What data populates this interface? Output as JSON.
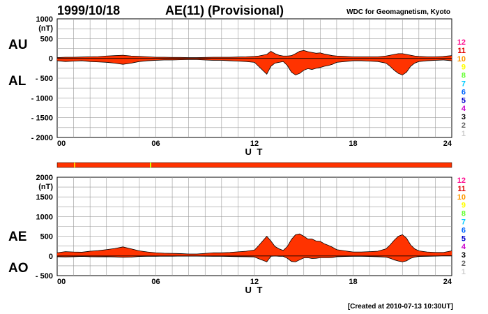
{
  "header": {
    "date": "1999/10/18",
    "title": "AE(11) (Provisional)",
    "source": "WDC for Geomagnetism, Kyoto"
  },
  "footer": {
    "created": "[Created at 2010-07-13 10:30UT]"
  },
  "legend": {
    "labels": [
      "12",
      "11",
      "10",
      "9",
      "8",
      "7",
      "6",
      "5",
      "4",
      "3",
      "2",
      "1"
    ],
    "colors": [
      "#ff1493",
      "#e00000",
      "#ff9900",
      "#ffff00",
      "#66ff33",
      "#00ccff",
      "#0066ff",
      "#0000cc",
      "#cc00cc",
      "#000000",
      "#666666",
      "#cccccc"
    ]
  },
  "colors": {
    "fill": "#ff3300",
    "outline": "#000000",
    "grid": "#999999"
  },
  "chart_data": [
    {
      "type": "area",
      "panel_labels": [
        "AU",
        "AL"
      ],
      "unit": "(nT)",
      "xlabel": "U T",
      "xlim": [
        0,
        24
      ],
      "ylim": [
        -2000,
        1000
      ],
      "xticks": [
        0,
        6,
        12,
        18,
        24
      ],
      "xtick_labels": [
        "00",
        "06",
        "12",
        "18",
        "24"
      ],
      "yticks": [
        1000,
        500,
        0,
        -500,
        -1000,
        -1500,
        -2000
      ],
      "ytick_labels": [
        "1000",
        "500",
        "0",
        "- 500",
        "- 1000",
        "- 1500",
        "- 2000"
      ],
      "x": [
        0,
        0.5,
        1,
        1.5,
        2,
        2.5,
        3,
        3.5,
        4,
        4.5,
        5,
        5.5,
        6,
        6.5,
        7,
        7.5,
        8,
        8.5,
        9,
        9.5,
        10,
        10.5,
        11,
        11.5,
        12,
        12.25,
        12.5,
        12.75,
        13,
        13.25,
        13.5,
        13.75,
        14,
        14.25,
        14.5,
        14.75,
        15,
        15.25,
        15.5,
        15.75,
        16,
        16.25,
        16.5,
        16.75,
        17,
        17.5,
        18,
        18.5,
        19,
        19.5,
        20,
        20.25,
        20.5,
        20.75,
        21,
        21.25,
        21.5,
        21.75,
        22,
        22.5,
        23,
        23.5,
        24
      ],
      "series": [
        {
          "name": "AU",
          "values": [
            20,
            30,
            30,
            35,
            40,
            45,
            60,
            70,
            80,
            60,
            50,
            40,
            30,
            30,
            25,
            25,
            20,
            20,
            25,
            30,
            30,
            30,
            35,
            40,
            50,
            60,
            80,
            100,
            180,
            120,
            80,
            60,
            60,
            70,
            120,
            180,
            200,
            170,
            150,
            130,
            140,
            110,
            90,
            70,
            60,
            50,
            40,
            40,
            40,
            40,
            60,
            80,
            100,
            120,
            120,
            100,
            80,
            60,
            50,
            40,
            40,
            50,
            70
          ]
        },
        {
          "name": "AL",
          "values": [
            -60,
            -80,
            -70,
            -60,
            -80,
            -90,
            -100,
            -120,
            -150,
            -120,
            -80,
            -60,
            -50,
            -40,
            -40,
            -35,
            -30,
            -30,
            -40,
            -50,
            -50,
            -60,
            -70,
            -80,
            -100,
            -200,
            -300,
            -400,
            -200,
            -120,
            -100,
            -80,
            -180,
            -350,
            -420,
            -380,
            -300,
            -260,
            -280,
            -250,
            -230,
            -200,
            -180,
            -150,
            -100,
            -80,
            -60,
            -60,
            -70,
            -80,
            -120,
            -200,
            -300,
            -380,
            -420,
            -350,
            -200,
            -120,
            -80,
            -60,
            -50,
            -40,
            -60
          ]
        }
      ]
    },
    {
      "type": "area",
      "panel_labels": [
        "AE",
        "AO"
      ],
      "unit": "(nT)",
      "xlabel": "U T",
      "xlim": [
        0,
        24
      ],
      "ylim": [
        -500,
        2000
      ],
      "xticks": [
        0,
        6,
        12,
        18,
        24
      ],
      "xtick_labels": [
        "00",
        "06",
        "12",
        "18",
        "24"
      ],
      "yticks": [
        2000,
        1500,
        1000,
        500,
        0,
        -500
      ],
      "ytick_labels": [
        "2000",
        "1500",
        "1000",
        "500",
        "0",
        "- 500"
      ],
      "x": [
        0,
        0.5,
        1,
        1.5,
        2,
        2.5,
        3,
        3.5,
        4,
        4.5,
        5,
        5.5,
        6,
        6.5,
        7,
        7.5,
        8,
        8.5,
        9,
        9.5,
        10,
        10.5,
        11,
        11.5,
        12,
        12.25,
        12.5,
        12.75,
        13,
        13.25,
        13.5,
        13.75,
        14,
        14.25,
        14.5,
        14.75,
        15,
        15.25,
        15.5,
        15.75,
        16,
        16.25,
        16.5,
        16.75,
        17,
        17.5,
        18,
        18.5,
        19,
        19.5,
        20,
        20.25,
        20.5,
        20.75,
        21,
        21.25,
        21.5,
        21.75,
        22,
        22.5,
        23,
        23.5,
        24
      ],
      "series": [
        {
          "name": "AE",
          "values": [
            80,
            110,
            100,
            95,
            120,
            135,
            160,
            190,
            230,
            180,
            130,
            100,
            80,
            70,
            65,
            60,
            50,
            50,
            65,
            80,
            80,
            90,
            105,
            120,
            150,
            260,
            380,
            500,
            380,
            240,
            180,
            140,
            240,
            420,
            540,
            560,
            500,
            430,
            430,
            380,
            370,
            310,
            270,
            220,
            160,
            130,
            100,
            100,
            110,
            120,
            180,
            280,
            400,
            500,
            540,
            450,
            280,
            180,
            130,
            100,
            90,
            90,
            130
          ]
        },
        {
          "name": "AO",
          "values": [
            -20,
            -25,
            -20,
            -12,
            -20,
            -22,
            -20,
            -25,
            -35,
            -30,
            -15,
            -10,
            -10,
            -5,
            -8,
            -5,
            -5,
            -5,
            -8,
            -10,
            -10,
            -15,
            -18,
            -20,
            -25,
            -70,
            -110,
            -150,
            -10,
            0,
            -10,
            -10,
            -60,
            -140,
            -150,
            -100,
            -50,
            -45,
            -65,
            -60,
            -45,
            -45,
            -45,
            -40,
            -20,
            -15,
            -10,
            -10,
            -15,
            -20,
            -30,
            -60,
            -100,
            -130,
            -150,
            -125,
            -60,
            -30,
            -15,
            -10,
            -5,
            5,
            5
          ]
        }
      ]
    }
  ]
}
